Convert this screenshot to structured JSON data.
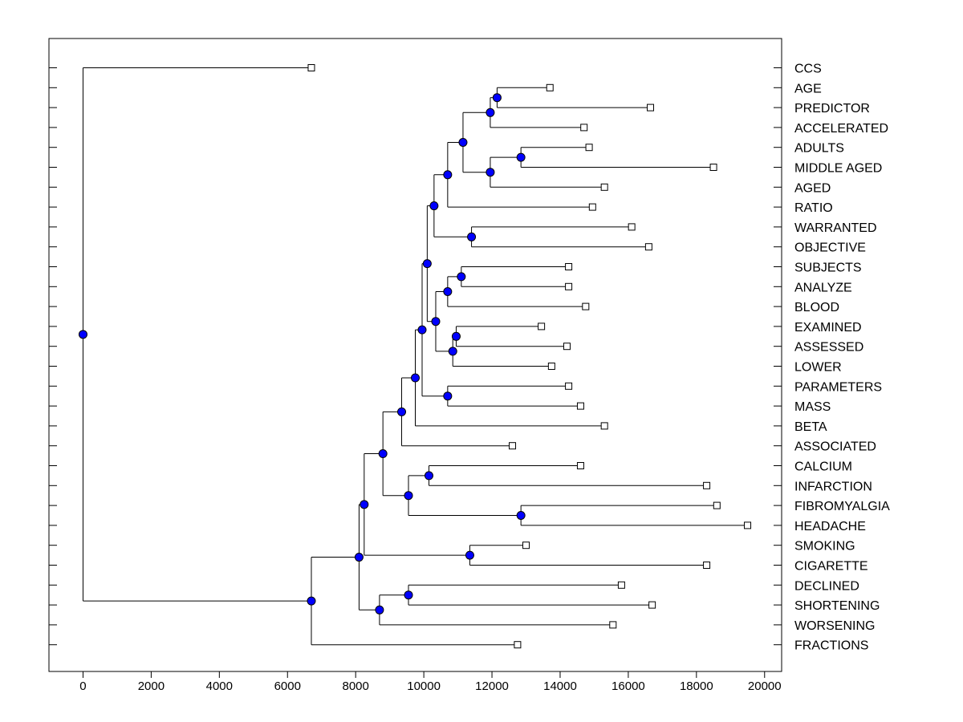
{
  "chart_data": {
    "type": "dendrogram",
    "title": "",
    "xlabel": "",
    "ylabel": "",
    "xlim": [
      -1000,
      20500
    ],
    "xticks": [
      0,
      2000,
      4000,
      6000,
      8000,
      10000,
      12000,
      14000,
      16000,
      18000,
      20000
    ],
    "xtick_labels": [
      "0",
      "2000",
      "4000",
      "6000",
      "8000",
      "10000",
      "12000",
      "14000",
      "16000",
      "18000",
      "20000"
    ],
    "leaves": [
      {
        "label": "CCS",
        "value": 6700
      },
      {
        "label": "AGE",
        "value": 13700
      },
      {
        "label": "PREDICTOR",
        "value": 16650
      },
      {
        "label": "ACCELERATED",
        "value": 14700
      },
      {
        "label": "ADULTS",
        "value": 14850
      },
      {
        "label": "MIDDLE AGED",
        "value": 18500
      },
      {
        "label": "AGED",
        "value": 15300
      },
      {
        "label": "RATIO",
        "value": 14950
      },
      {
        "label": "WARRANTED",
        "value": 16100
      },
      {
        "label": "OBJECTIVE",
        "value": 16600
      },
      {
        "label": "SUBJECTS",
        "value": 14250
      },
      {
        "label": "ANALYZE",
        "value": 14250
      },
      {
        "label": "BLOOD",
        "value": 14750
      },
      {
        "label": "EXAMINED",
        "value": 13450
      },
      {
        "label": "ASSESSED",
        "value": 14200
      },
      {
        "label": "LOWER",
        "value": 13750
      },
      {
        "label": "PARAMETERS",
        "value": 14250
      },
      {
        "label": "MASS",
        "value": 14600
      },
      {
        "label": "BETA",
        "value": 15300
      },
      {
        "label": "ASSOCIATED",
        "value": 12600
      },
      {
        "label": "CALCIUM",
        "value": 14600
      },
      {
        "label": "INFARCTION",
        "value": 18300
      },
      {
        "label": "FIBROMYALGIA",
        "value": 18600
      },
      {
        "label": "HEADACHE",
        "value": 19500
      },
      {
        "label": "SMOKING",
        "value": 13000
      },
      {
        "label": "CIGARETTE",
        "value": 18300
      },
      {
        "label": "DECLINED",
        "value": 15800
      },
      {
        "label": "SHORTENING",
        "value": 16700
      },
      {
        "label": "WORSENING",
        "value": 15550
      },
      {
        "label": "FRACTIONS",
        "value": 12750
      }
    ],
    "merges": [
      {
        "id": "n1",
        "height": 12150,
        "children": [
          "AGE",
          "PREDICTOR"
        ]
      },
      {
        "id": "n2",
        "height": 11950,
        "children": [
          "n1",
          "ACCELERATED"
        ]
      },
      {
        "id": "n3",
        "height": 12850,
        "children": [
          "ADULTS",
          "MIDDLE AGED"
        ]
      },
      {
        "id": "n4",
        "height": 11950,
        "children": [
          "n3",
          "AGED"
        ]
      },
      {
        "id": "n5",
        "height": 11150,
        "children": [
          "n2",
          "n4"
        ]
      },
      {
        "id": "n6",
        "height": 10700,
        "children": [
          "n5",
          "RATIO"
        ]
      },
      {
        "id": "n7",
        "height": 11400,
        "children": [
          "WARRANTED",
          "OBJECTIVE"
        ]
      },
      {
        "id": "n8",
        "height": 10300,
        "children": [
          "n6",
          "n7"
        ]
      },
      {
        "id": "n9",
        "height": 11100,
        "children": [
          "SUBJECTS",
          "ANALYZE"
        ]
      },
      {
        "id": "n10",
        "height": 10700,
        "children": [
          "n9",
          "BLOOD"
        ]
      },
      {
        "id": "n11",
        "height": 10950,
        "children": [
          "EXAMINED",
          "ASSESSED"
        ]
      },
      {
        "id": "n12",
        "height": 10850,
        "children": [
          "n11",
          "LOWER"
        ]
      },
      {
        "id": "n13",
        "height": 10350,
        "children": [
          "n10",
          "n12"
        ]
      },
      {
        "id": "n14",
        "height": 10100,
        "children": [
          "n8",
          "n13"
        ]
      },
      {
        "id": "n15",
        "height": 10700,
        "children": [
          "PARAMETERS",
          "MASS"
        ]
      },
      {
        "id": "n16",
        "height": 9950,
        "children": [
          "n14",
          "n15"
        ]
      },
      {
        "id": "n17",
        "height": 9750,
        "children": [
          "n16",
          "BETA"
        ]
      },
      {
        "id": "n18",
        "height": 9350,
        "children": [
          "n17",
          "ASSOCIATED"
        ]
      },
      {
        "id": "n19",
        "height": 10150,
        "children": [
          "CALCIUM",
          "INFARCTION"
        ]
      },
      {
        "id": "n20",
        "height": 12850,
        "children": [
          "FIBROMYALGIA",
          "HEADACHE"
        ]
      },
      {
        "id": "n21",
        "height": 9550,
        "children": [
          "n19",
          "n20"
        ]
      },
      {
        "id": "n22",
        "height": 8800,
        "children": [
          "n18",
          "n21"
        ]
      },
      {
        "id": "n23",
        "height": 11350,
        "children": [
          "SMOKING",
          "CIGARETTE"
        ]
      },
      {
        "id": "n24",
        "height": 8250,
        "children": [
          "n22",
          "n23"
        ]
      },
      {
        "id": "n25",
        "height": 9550,
        "children": [
          "DECLINED",
          "SHORTENING"
        ]
      },
      {
        "id": "n26",
        "height": 8700,
        "children": [
          "n25",
          "WORSENING"
        ]
      },
      {
        "id": "n27",
        "height": 8100,
        "children": [
          "n24",
          "n26"
        ]
      },
      {
        "id": "n28",
        "height": 6700,
        "children": [
          "n27",
          "FRACTIONS"
        ]
      },
      {
        "id": "root",
        "height": 0,
        "children": [
          "CCS",
          "n28"
        ]
      }
    ],
    "colors": {
      "node_fill": "#0000ff",
      "leaf_fill": "#ffffff",
      "line": "#000000"
    }
  }
}
